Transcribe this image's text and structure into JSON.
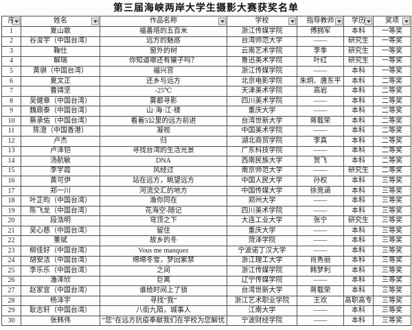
{
  "title": "第三届海峡两岸大学生摄影大赛获奖名单",
  "colors": {
    "border": "#4f4f4f",
    "text": "#1a1a1a",
    "filter_button_bg": "#e7e7e7"
  },
  "icons": {
    "header_filter": "filter-dropdown-arrow-icon"
  },
  "table": {
    "columns": [
      {
        "id": "seq",
        "label": "序"
      },
      {
        "id": "name",
        "label": "姓名"
      },
      {
        "id": "work",
        "label": "作品名称"
      },
      {
        "id": "school",
        "label": "学校"
      },
      {
        "id": "advisor",
        "label": "指导教师"
      },
      {
        "id": "degree",
        "label": "学历"
      },
      {
        "id": "award",
        "label": "奖项"
      }
    ],
    "rows": [
      [
        "1",
        "夏山歌",
        "福善塔的五百米",
        "浙江传媒学院",
        "傅拥军",
        "本科",
        "一等奖"
      ],
      [
        "2",
        "谷浚宇（中国台湾）",
        "远方的魅惑",
        "台湾师范大学",
        "——",
        "研究生",
        "一等奖"
      ],
      [
        "3",
        "鞠仕",
        "窗外的树",
        "云南艺术学院",
        "李季",
        "研究生",
        "一等奖"
      ],
      [
        "4",
        "解瑞",
        "你知道哪还有獾子吗？",
        "鲁迅美术学院",
        "叶红",
        "研究生",
        "一等奖"
      ],
      [
        "5",
        "黄骐（中国台湾）",
        "福兴宫",
        "浙江传媒学院",
        "——",
        "本科",
        "一等奖"
      ],
      [
        "6",
        "夏文正",
        "还乡与远方",
        "北京电影学院",
        "朱炯、唐东平",
        "本科",
        "二等奖"
      ],
      [
        "7",
        "曹靖坚",
        "-25℃",
        "天津美术学院",
        "高岩",
        "本科",
        "二等奖"
      ],
      [
        "8",
        "吴健章（中国台湾）",
        "雾都寻影",
        "四川美术学院",
        "——",
        "本科",
        "二等奖"
      ],
      [
        "9",
        "魏鼎泰（中国台湾）",
        "山·海·江·楼",
        "重庆大学",
        "——",
        "本科",
        "二等奖"
      ],
      [
        "10",
        "蔡承佑（中国台湾）",
        "看着5公里的远方前进",
        "台湾世新大学",
        "蒋载荣",
        "本科",
        "二等奖"
      ],
      [
        "11",
        "陈澄（中国香港）",
        "凝视",
        "中国美术学院",
        "——",
        "本科",
        "二等奖"
      ],
      [
        "12",
        "卢杰",
        "归",
        "湖北商贸学院",
        "李真",
        "本科",
        "二等奖"
      ],
      [
        "13",
        "卢泽铠",
        "寻找台湾的生活光景",
        "广东科技学院",
        "——",
        "本科",
        "二等奖"
      ],
      [
        "14",
        "汤航敏",
        "DNA",
        "西南民族大学",
        "贺飞",
        "本科",
        "二等奖"
      ],
      [
        "15",
        "李宇霞",
        "风经过",
        "南京师范大学",
        "——",
        "研究生",
        "二等奖"
      ],
      [
        "16",
        "黄可伊",
        "站在远方，眺望远方",
        "中国人民大学",
        "孙权",
        "本科",
        "三等奖"
      ],
      [
        "17",
        "郑一川",
        "河流交汇的地方",
        "中国传媒大学",
        "徐竞涵",
        "本科",
        "三等奖"
      ],
      [
        "18",
        "叶芷昀（中国台湾）",
        "渔你同在",
        "郑州大学",
        "——",
        "本科",
        "三等奖"
      ],
      [
        "19",
        "陈飞龙（中国台湾）",
        "花海空-随记",
        "四川美术学院",
        "——",
        "本科",
        "三等奖"
      ],
      [
        "20",
        "段浩明",
        "穹顶之下",
        "大连工业大学",
        "张宁",
        "研究生",
        "三等奖"
      ],
      [
        "21",
        "吴心慈（中国台湾）",
        "留住",
        "重庆大学",
        "——",
        "本科",
        "三等奖"
      ],
      [
        "22",
        "董斌",
        "故乡的冬",
        "菏泽学院",
        "——",
        "本科",
        "三等奖"
      ],
      [
        "23",
        "柳佳好（中国台湾）",
        "Vous me manquez",
        "宁波诺丁汉大学",
        "——",
        "本科",
        "三等奖"
      ],
      [
        "24",
        "胡安洁（中国台湾）",
        "绵绵冬雪，梦回紫禁",
        "浙江理工大学",
        "肖秀丽",
        "本科",
        "三等奖"
      ],
      [
        "25",
        "李乐乐（中国台湾）",
        "之间",
        "浙江传媒学院",
        "韩梦利",
        "本科",
        "三等奖"
      ],
      [
        "26",
        "潘泽欣",
        "巨离",
        "辽宁传媒学院",
        "——",
        "本科",
        "三等奖"
      ],
      [
        "27",
        "赵家宜（中国台湾）",
        "谁给时间上了锁",
        "台湾世新大学",
        "蒋载荣",
        "本科",
        "三等奖"
      ],
      [
        "28",
        "杨泽宇",
        "寻找“我”",
        "浙江艺术职业学院",
        "王欢",
        "高职高专",
        "三等奖"
      ],
      [
        "29",
        "耿志轩（中国台湾）",
        "八街九陌，城事人",
        "江南大学",
        "——",
        "本科",
        "三等奖"
      ],
      [
        "30",
        "张韩伟",
        "“您”在远方抗疫奉献我们在学校为您解忧",
        "宁波财经学院",
        "——",
        "本科",
        "三等奖"
      ]
    ]
  }
}
